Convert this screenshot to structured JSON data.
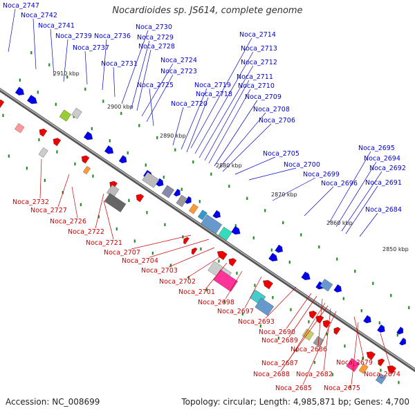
{
  "title": "Nocardioides sp. JS614, complete genome",
  "accession": "Accession: NC_008699",
  "stats": "Topology: circular; Length: 4,985,871 bp; Genes: 4,700",
  "colors": {
    "forward": "#0000ee",
    "reverse": "#ee0000",
    "backbone": "#777777",
    "marker": "#228b22",
    "label_forward": "#0000cc",
    "label_reverse": "#cc0000"
  },
  "kbp_ticks": [
    "2910 kbp",
    "2900 kbp",
    "2890 kbp",
    "2880 kbp",
    "2870 kbp",
    "2860 kbp",
    "2850 kbp"
  ],
  "top_labels": [
    "Noca_2747",
    "Noca_2742",
    "Noca_2741",
    "Noca_2739",
    "Noca_2737",
    "Noca_2736",
    "Noca_2731",
    "Noca_2730",
    "Noca_2729",
    "Noca_2728",
    "Noca_2724",
    "Noca_2723",
    "Noca_2725",
    "Noca_2719",
    "Noca_2718",
    "Noca_2720",
    "Noca_2714",
    "Noca_2713",
    "Noca_2712",
    "Noca_2711",
    "Noca_2710",
    "Noca_2709",
    "Noca_2708",
    "Noca_2706",
    "Noca_2705",
    "Noca_2700",
    "Noca_2699",
    "Noca_2696",
    "Noca_2695",
    "Noca_2694",
    "Noca_2692",
    "Noca_2691",
    "Noca_2684"
  ],
  "bottom_labels": [
    "Noca_2732",
    "Noca_2727",
    "Noca_2726",
    "Noca_2722",
    "Noca_2721",
    "Noca_2707",
    "Noca_2704",
    "Noca_2703",
    "Noca_2702",
    "Noca_2701",
    "Noca_2698",
    "Noca_2697",
    "Noca_2693",
    "Noca_2690",
    "Noca_2689",
    "Noca_2686",
    "Noca_2687",
    "Noca_2688",
    "Noca_2682",
    "Noca_2685",
    "Noca_2679",
    "Noca_2675",
    "Noca_2674"
  ]
}
